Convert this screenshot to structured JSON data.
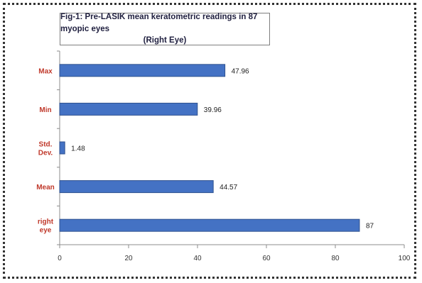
{
  "chart_data": {
    "type": "bar",
    "orientation": "horizontal",
    "title": "Fig-1: Pre-LASIK mean keratometric readings in 87 myopic eyes",
    "subtitle": "(Right Eye)",
    "categories": [
      "Max",
      "Min",
      "Std. Dev.",
      "Mean",
      "right eye"
    ],
    "category_lines": [
      [
        "Max"
      ],
      [
        "Min"
      ],
      [
        "Std.",
        "Dev."
      ],
      [
        "Mean"
      ],
      [
        "right",
        "eye"
      ]
    ],
    "values": [
      47.96,
      39.96,
      1.48,
      44.57,
      87
    ],
    "value_labels": [
      "47.96",
      "39.96",
      "1.48",
      "44.57",
      "87"
    ],
    "xlim": [
      0,
      100
    ],
    "xticks": [
      0,
      20,
      40,
      60,
      80,
      100
    ],
    "grid": false,
    "bar_color": "#4472c4",
    "bar_edge_color": "#2f528f",
    "category_label_color": "#c0392b"
  }
}
